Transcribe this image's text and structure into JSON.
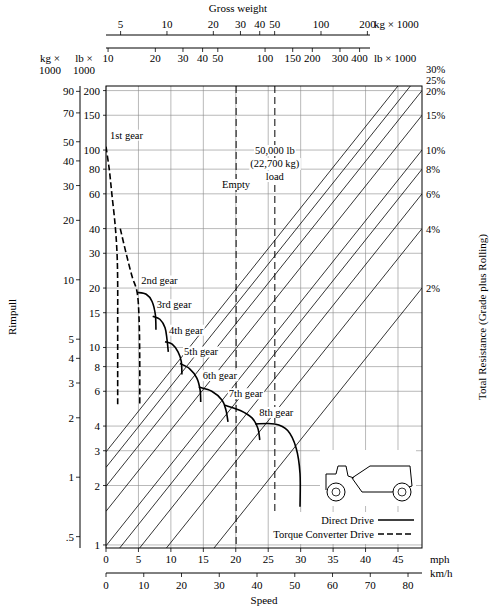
{
  "chart_data": {
    "type": "line",
    "xlabel": "Speed",
    "ylabel": "Rimpull",
    "resistance_label": "Total Resistance (Grade plus Rolling)",
    "xunit": "mph",
    "xlim": [
      0,
      48.7
    ],
    "xticks": [
      0,
      5,
      10,
      15,
      20,
      25,
      30,
      35,
      40,
      45
    ],
    "x2unit": "km/h",
    "x2lim": [
      0,
      83.7
    ],
    "x2ticks": [
      0,
      10,
      20,
      30,
      40,
      50,
      60,
      70,
      80
    ],
    "yunit": [
      "lb ×",
      "1000"
    ],
    "ylim": [
      0.965,
      211
    ],
    "yticks": [
      1,
      2,
      3,
      4,
      6,
      8,
      10,
      15,
      20,
      30,
      40,
      60,
      80,
      100,
      150,
      200
    ],
    "y2unit": [
      "kg ×",
      "1000"
    ],
    "y2lim": [
      0.438,
      95.8
    ],
    "y2ticks": [
      {
        "value": 0.5,
        "label": ".5"
      },
      1,
      2,
      3,
      4,
      5,
      10,
      20,
      30,
      40,
      50,
      70,
      90
    ],
    "log": "y",
    "grid": true,
    "legend": "bottom-right",
    "legend_entries": [
      {
        "label": "Direct Drive",
        "line_style": "solid"
      },
      {
        "label": "Torque Converter Drive",
        "line_style": "dashed"
      }
    ],
    "weight_axis": {
      "title": "Gross weight",
      "kg": {
        "unit": "kg × 1000",
        "lim": [
          4.02,
          208
        ],
        "ticks": [
          5,
          10,
          20,
          30,
          40,
          50,
          100,
          200
        ]
      },
      "lb": {
        "unit": "lb × 1000",
        "lim": [
          9.7,
          466
        ],
        "ticks": [
          10,
          20,
          30,
          40,
          50,
          100,
          150,
          200,
          300,
          400
        ]
      }
    },
    "reference_lines": [
      {
        "labels": [
          "Empty"
        ],
        "weight": 65.4
      },
      {
        "labels": [
          "50,000 lb",
          "(22,700 kg)",
          "load"
        ],
        "weight": 115.4
      }
    ],
    "resistance_lines": [
      {
        "name": "30%",
        "x": [
          0,
          48.7
        ],
        "values": [
          2.96,
          300
        ]
      },
      {
        "name": "25%",
        "x": [
          0,
          48.7
        ],
        "values": [
          2.47,
          250
        ]
      },
      {
        "name": "20%",
        "x": [
          0,
          48.7
        ],
        "values": [
          1.98,
          200
        ]
      },
      {
        "name": "15%",
        "x": [
          0,
          48.7
        ],
        "values": [
          1.48,
          150
        ]
      },
      {
        "name": "10%",
        "x": [
          0,
          48.7
        ],
        "values": [
          0.99,
          100
        ]
      },
      {
        "name": "8%",
        "x": [
          0,
          48.7
        ],
        "values": [
          0.79,
          80
        ]
      },
      {
        "name": "6%",
        "x": [
          0,
          48.7
        ],
        "values": [
          0.59,
          60
        ]
      },
      {
        "name": "4%",
        "x": [
          0,
          48.7
        ],
        "values": [
          0.4,
          40
        ]
      },
      {
        "name": "2%",
        "x": [
          0,
          48.7
        ],
        "values": [
          0.2,
          20
        ]
      }
    ],
    "series": [
      {
        "name": "1st gear",
        "line_style": "dashed",
        "x": [
          0,
          0.5,
          0.9,
          1.4,
          1.7,
          1.8,
          1.8,
          1.8
        ],
        "values": [
          104,
          80,
          60,
          42,
          30,
          21,
          12.3,
          5.1
        ]
      },
      {
        "name": null,
        "line_style": "dashed",
        "x": [
          2.2,
          3.1,
          4.0,
          4.8,
          5.1,
          5.2,
          5.2
        ],
        "values": [
          40,
          30,
          23,
          19,
          13.9,
          8.7,
          5.1
        ]
      },
      {
        "name": "2nd gear",
        "line_style": "solid",
        "x": [
          4.8,
          6.2,
          7.1,
          7.6,
          7.7
        ],
        "values": [
          19,
          18.6,
          17.1,
          14.7,
          12.3
        ]
      },
      {
        "name": "3rd gear",
        "line_style": "solid",
        "x": [
          7.2,
          8.3,
          9.1,
          9.4,
          9.6
        ],
        "values": [
          14.4,
          13.9,
          12.6,
          11,
          9.5
        ]
      },
      {
        "name": "4th gear",
        "line_style": "solid",
        "x": [
          9.1,
          10.2,
          11.1,
          11.6,
          11.7
        ],
        "values": [
          10.7,
          10.4,
          9.5,
          8.5,
          7.3
        ]
      },
      {
        "name": "5th gear",
        "line_style": "solid",
        "x": [
          11.4,
          12.9,
          14,
          14.5,
          14.6
        ],
        "values": [
          8.3,
          7.8,
          7,
          6.1,
          5.3
        ]
      },
      {
        "name": "6th gear",
        "line_style": "solid",
        "x": [
          14.3,
          16.3,
          17.9,
          18.5,
          18.8
        ],
        "values": [
          6.3,
          6,
          5.4,
          4.8,
          4.2
        ]
      },
      {
        "name": "7th gear",
        "line_style": "solid",
        "x": [
          18.3,
          20.7,
          22.5,
          23.4,
          23.7
        ],
        "values": [
          5.1,
          4.8,
          4.4,
          3.9,
          3.4
        ]
      },
      {
        "name": "8th gear",
        "line_style": "solid",
        "x": [
          23,
          26,
          28,
          29.3,
          29.9,
          29.9
        ],
        "values": [
          4.1,
          4.1,
          3.8,
          3.1,
          2.3,
          1.56
        ]
      }
    ]
  }
}
